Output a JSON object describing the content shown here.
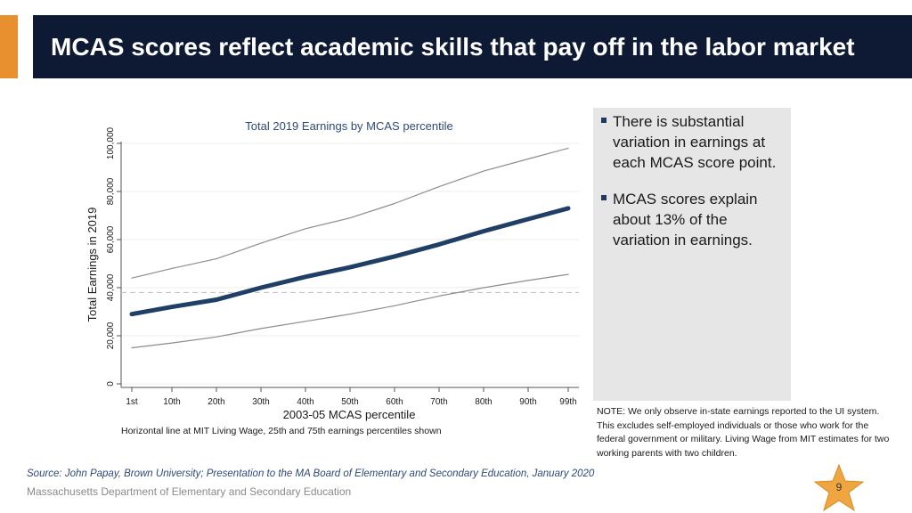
{
  "slide": {
    "title": "MCAS scores reflect academic skills that pay off in the labor market",
    "bullets": [
      "There is substantial variation in earnings at each MCAS score point.",
      "MCAS scores explain about 13% of the variation in earnings."
    ],
    "note": "NOTE: We only observe in-state earnings reported to the UI system. This excludes self-employed individuals or those who work for the federal government or military. Living Wage from MIT estimates for two working parents with two children.",
    "source": "Source: John Papay, Brown University; Presentation to the MA Board of Elementary and Secondary Education, January 2020",
    "footer_org": "Massachusetts Department of Elementary and Secondary Education",
    "page_number": "9"
  },
  "colors": {
    "accent": "#e8902f",
    "banner": "#0e1a33",
    "median_line": "#1f3f66",
    "band_line": "#8c8c8c",
    "living_wage_line": "#bdbdbd"
  },
  "chart_data": {
    "type": "line",
    "title": "Total 2019 Earnings by MCAS percentile",
    "xlabel": "2003-05 MCAS percentile",
    "ylabel": "Total Earnings in 2019",
    "caption": "Horizontal line at MIT Living Wage, 25th and 75th earnings percentiles shown",
    "x": [
      1,
      10,
      20,
      30,
      40,
      50,
      60,
      70,
      80,
      90,
      99
    ],
    "x_tick_labels": [
      "1st",
      "10th",
      "20th",
      "30th",
      "40th",
      "50th",
      "60th",
      "70th",
      "80th",
      "90th",
      "99th"
    ],
    "y_ticks": [
      0,
      20000,
      40000,
      60000,
      80000,
      100000
    ],
    "y_tick_labels": [
      "0",
      "20,000",
      "40,000",
      "60,000",
      "80,000",
      "100,000"
    ],
    "xlim": [
      0,
      100
    ],
    "ylim": [
      0,
      100000
    ],
    "living_wage": 38000,
    "series": [
      {
        "name": "75th percentile",
        "values": [
          44000,
          48000,
          52000,
          58500,
          64500,
          69000,
          75000,
          82000,
          88500,
          93500,
          98000
        ]
      },
      {
        "name": "Median",
        "values": [
          29000,
          32000,
          35000,
          40000,
          44500,
          48500,
          53000,
          58000,
          63500,
          68500,
          73000
        ]
      },
      {
        "name": "25th percentile",
        "values": [
          15000,
          17000,
          19500,
          23000,
          26000,
          29000,
          32500,
          36500,
          40000,
          43000,
          45500
        ]
      }
    ]
  }
}
